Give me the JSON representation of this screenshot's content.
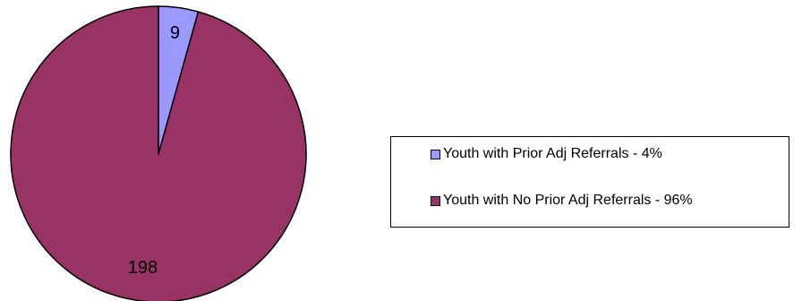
{
  "chart_data": {
    "type": "pie",
    "title": "",
    "slices": [
      {
        "name": "Youth with Prior Adj Referrals",
        "value": 9,
        "value_label": "9",
        "legend_label": "Youth with Prior Adj Referrals - 4%",
        "color": "#9999ff"
      },
      {
        "name": "Youth with No Prior Adj Referrals",
        "value": 198,
        "value_label": "198",
        "legend_label": "Youth with No Prior Adj Referrals - 96%",
        "color": "#993366"
      }
    ],
    "start_angle": "12 o'clock",
    "direction": "clockwise",
    "legend_position": "right"
  }
}
